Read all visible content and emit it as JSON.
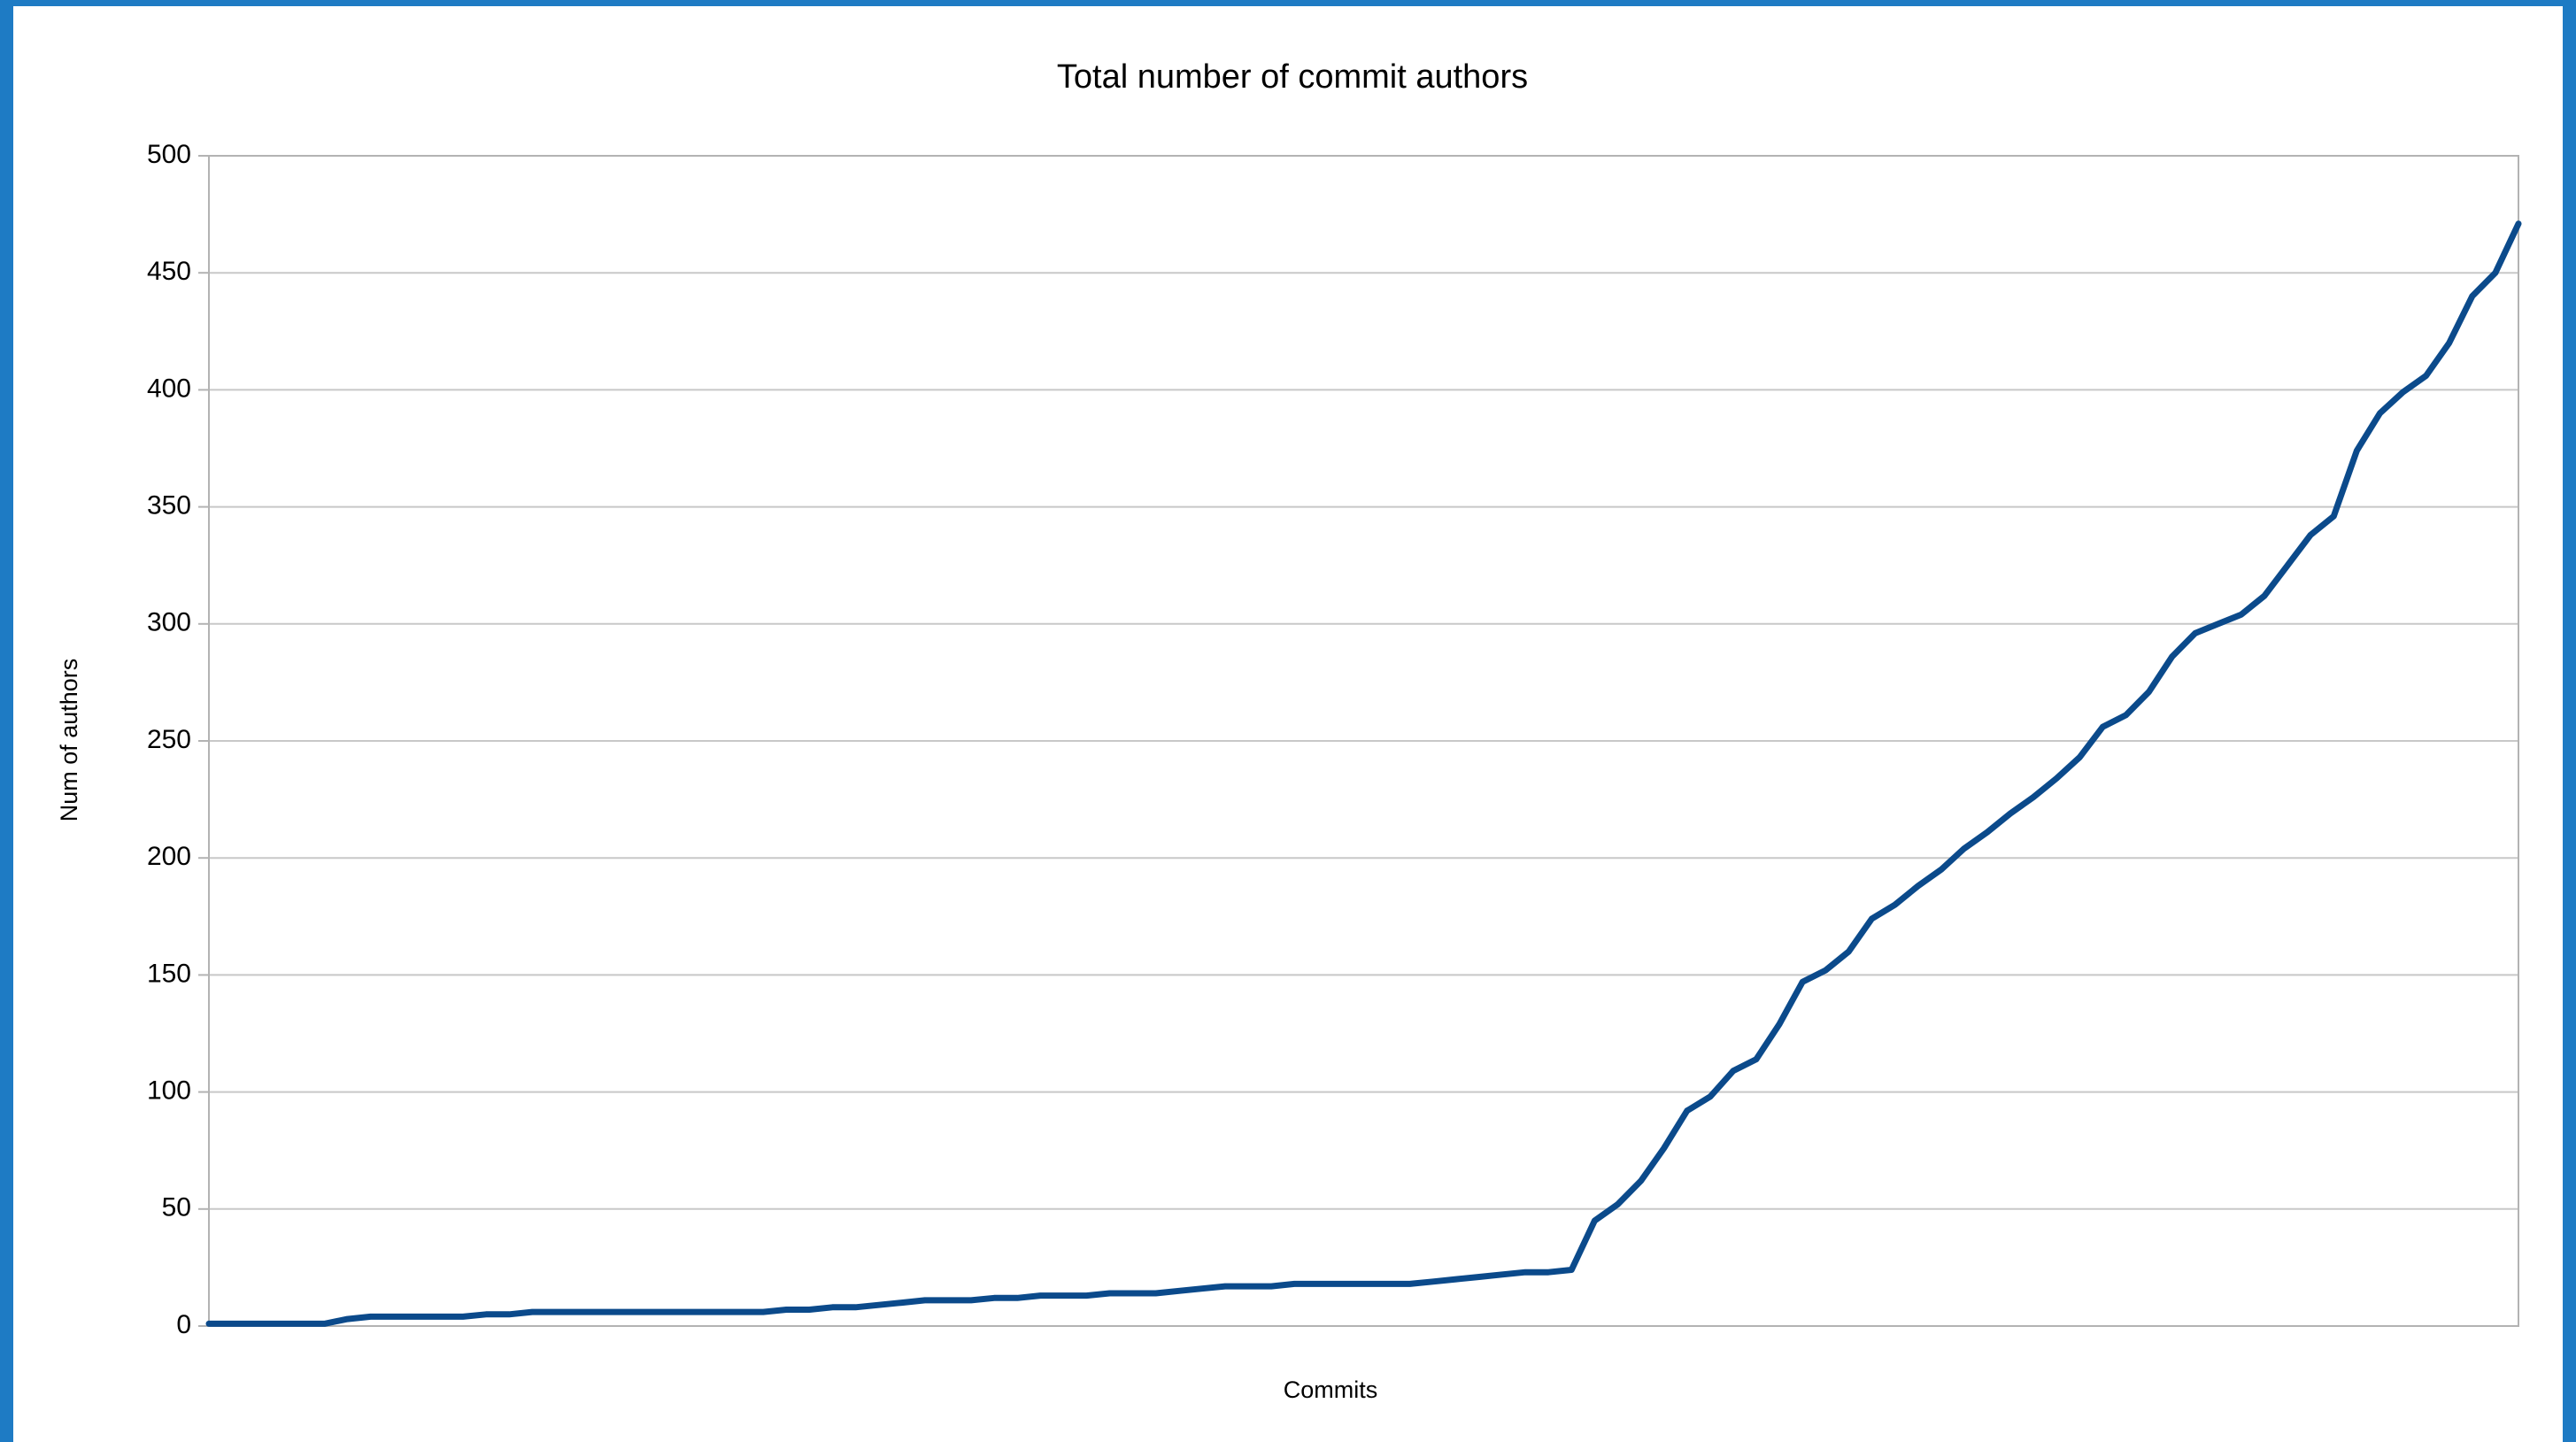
{
  "chart_data": {
    "type": "line",
    "title": "Total number of commit authors",
    "xlabel": "Commits",
    "ylabel": "Num of authors",
    "series": [
      {
        "name": "Num of authors",
        "color": "#0b4a8b",
        "values": [
          1,
          1,
          1,
          1,
          1,
          1,
          3,
          4,
          4,
          4,
          4,
          4,
          5,
          5,
          6,
          6,
          6,
          6,
          6,
          6,
          6,
          6,
          6,
          6,
          6,
          7,
          7,
          8,
          8,
          9,
          10,
          11,
          11,
          11,
          12,
          12,
          13,
          13,
          13,
          14,
          14,
          14,
          15,
          16,
          17,
          17,
          17,
          18,
          18,
          18,
          18,
          18,
          18,
          19,
          20,
          21,
          22,
          23,
          23,
          24,
          45,
          52,
          62,
          76,
          92,
          98,
          109,
          114,
          129,
          147,
          152,
          160,
          174,
          180,
          188,
          195,
          204,
          211,
          219,
          226,
          234,
          243,
          256,
          261,
          271,
          286,
          296,
          300,
          304,
          312,
          325,
          338,
          346,
          374,
          390,
          399,
          406,
          420,
          440,
          450,
          471
        ]
      }
    ],
    "ylim": [
      0,
      500
    ],
    "yticks": [
      0,
      50,
      100,
      150,
      200,
      250,
      300,
      350,
      400,
      450,
      500
    ],
    "grid": true
  }
}
